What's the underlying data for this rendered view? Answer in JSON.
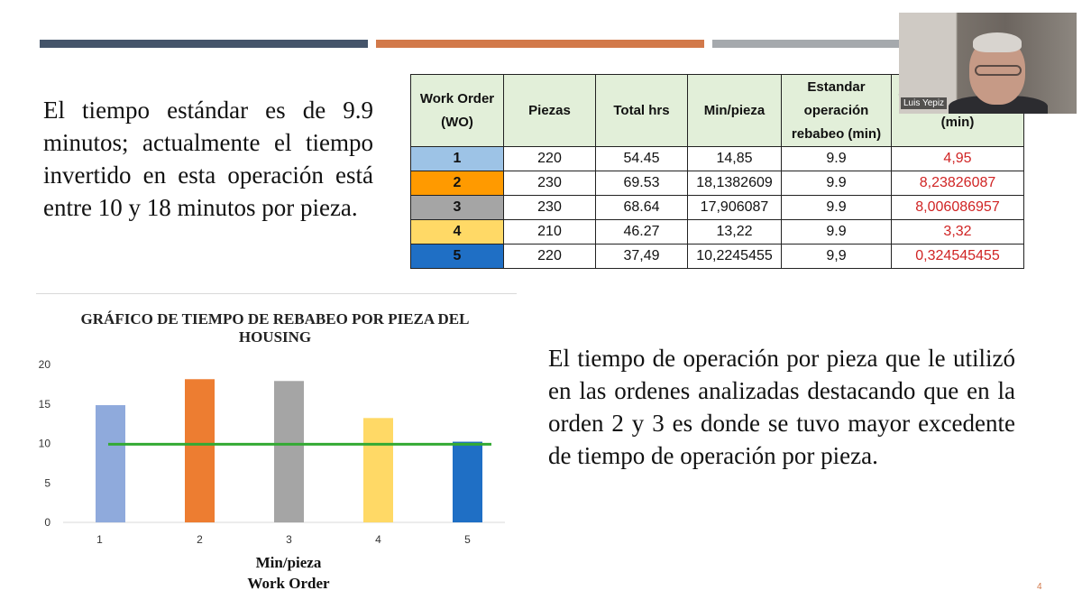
{
  "slide": {
    "paragraph1": "El tiempo estándar es de 9.9 minutos; actualmente el tiempo invertido en esta operación está entre 10 y 18 minutos por pieza.",
    "paragraph2": "El tiempo de operación por pieza que le utilizó en las ordenes analizadas destacando que en la orden 2 y 3 es donde se tuvo mayor excedente de tiempo de operación por pieza.",
    "slide_number": "4",
    "accent_colors": [
      "#44546a",
      "#d2794a",
      "#a5a9ad"
    ]
  },
  "table": {
    "headers": [
      "Work Order (WO)",
      "Piezas",
      "Total hrs",
      "Min/pieza",
      "Estandar operación rebabeo (min)",
      "Tiempo excedente (min)"
    ],
    "rows": [
      {
        "wo": "1",
        "piezas": "220",
        "total_hrs": "54.45",
        "min_pieza": "14,85",
        "estandar": "9.9",
        "excedente": "4,95",
        "color": "#9dc3e6"
      },
      {
        "wo": "2",
        "piezas": "230",
        "total_hrs": "69.53",
        "min_pieza": "18,1382609",
        "estandar": "9.9",
        "excedente": "8,23826087",
        "color": "#ff9a00"
      },
      {
        "wo": "3",
        "piezas": "230",
        "total_hrs": "68.64",
        "min_pieza": "17,906087",
        "estandar": "9.9",
        "excedente": "8,006086957",
        "color": "#a5a5a5"
      },
      {
        "wo": "4",
        "piezas": "210",
        "total_hrs": "46.27",
        "min_pieza": "13,22",
        "estandar": "9.9",
        "excedente": "3,32",
        "color": "#ffd966"
      },
      {
        "wo": "5",
        "piezas": "220",
        "total_hrs": "37,49",
        "min_pieza": "10,2245455",
        "estandar": "9,9",
        "excedente": "0,324545455",
        "color": "#1f6fc5"
      }
    ]
  },
  "chart_data": {
    "type": "bar",
    "title": "GRÁFICO DE TIEMPO DE REBABEO POR PIEZA DEL HOUSING",
    "xlabel": "Min/pieza",
    "xlabel2": "Work Order",
    "categories": [
      "1",
      "2",
      "3",
      "4",
      "5"
    ],
    "values": [
      14.85,
      18.14,
      17.91,
      13.22,
      10.22
    ],
    "bar_colors": [
      "#8faadc",
      "#ed7d31",
      "#a5a5a5",
      "#ffd966",
      "#1f6fc5"
    ],
    "reference_line": {
      "value": 9.9,
      "color": "#33aa33"
    },
    "ylim": [
      0,
      20
    ],
    "yticks": [
      "0",
      "5",
      "10",
      "15",
      "20"
    ],
    "grid": false
  },
  "webcam": {
    "name": "Luis Yepiz"
  }
}
